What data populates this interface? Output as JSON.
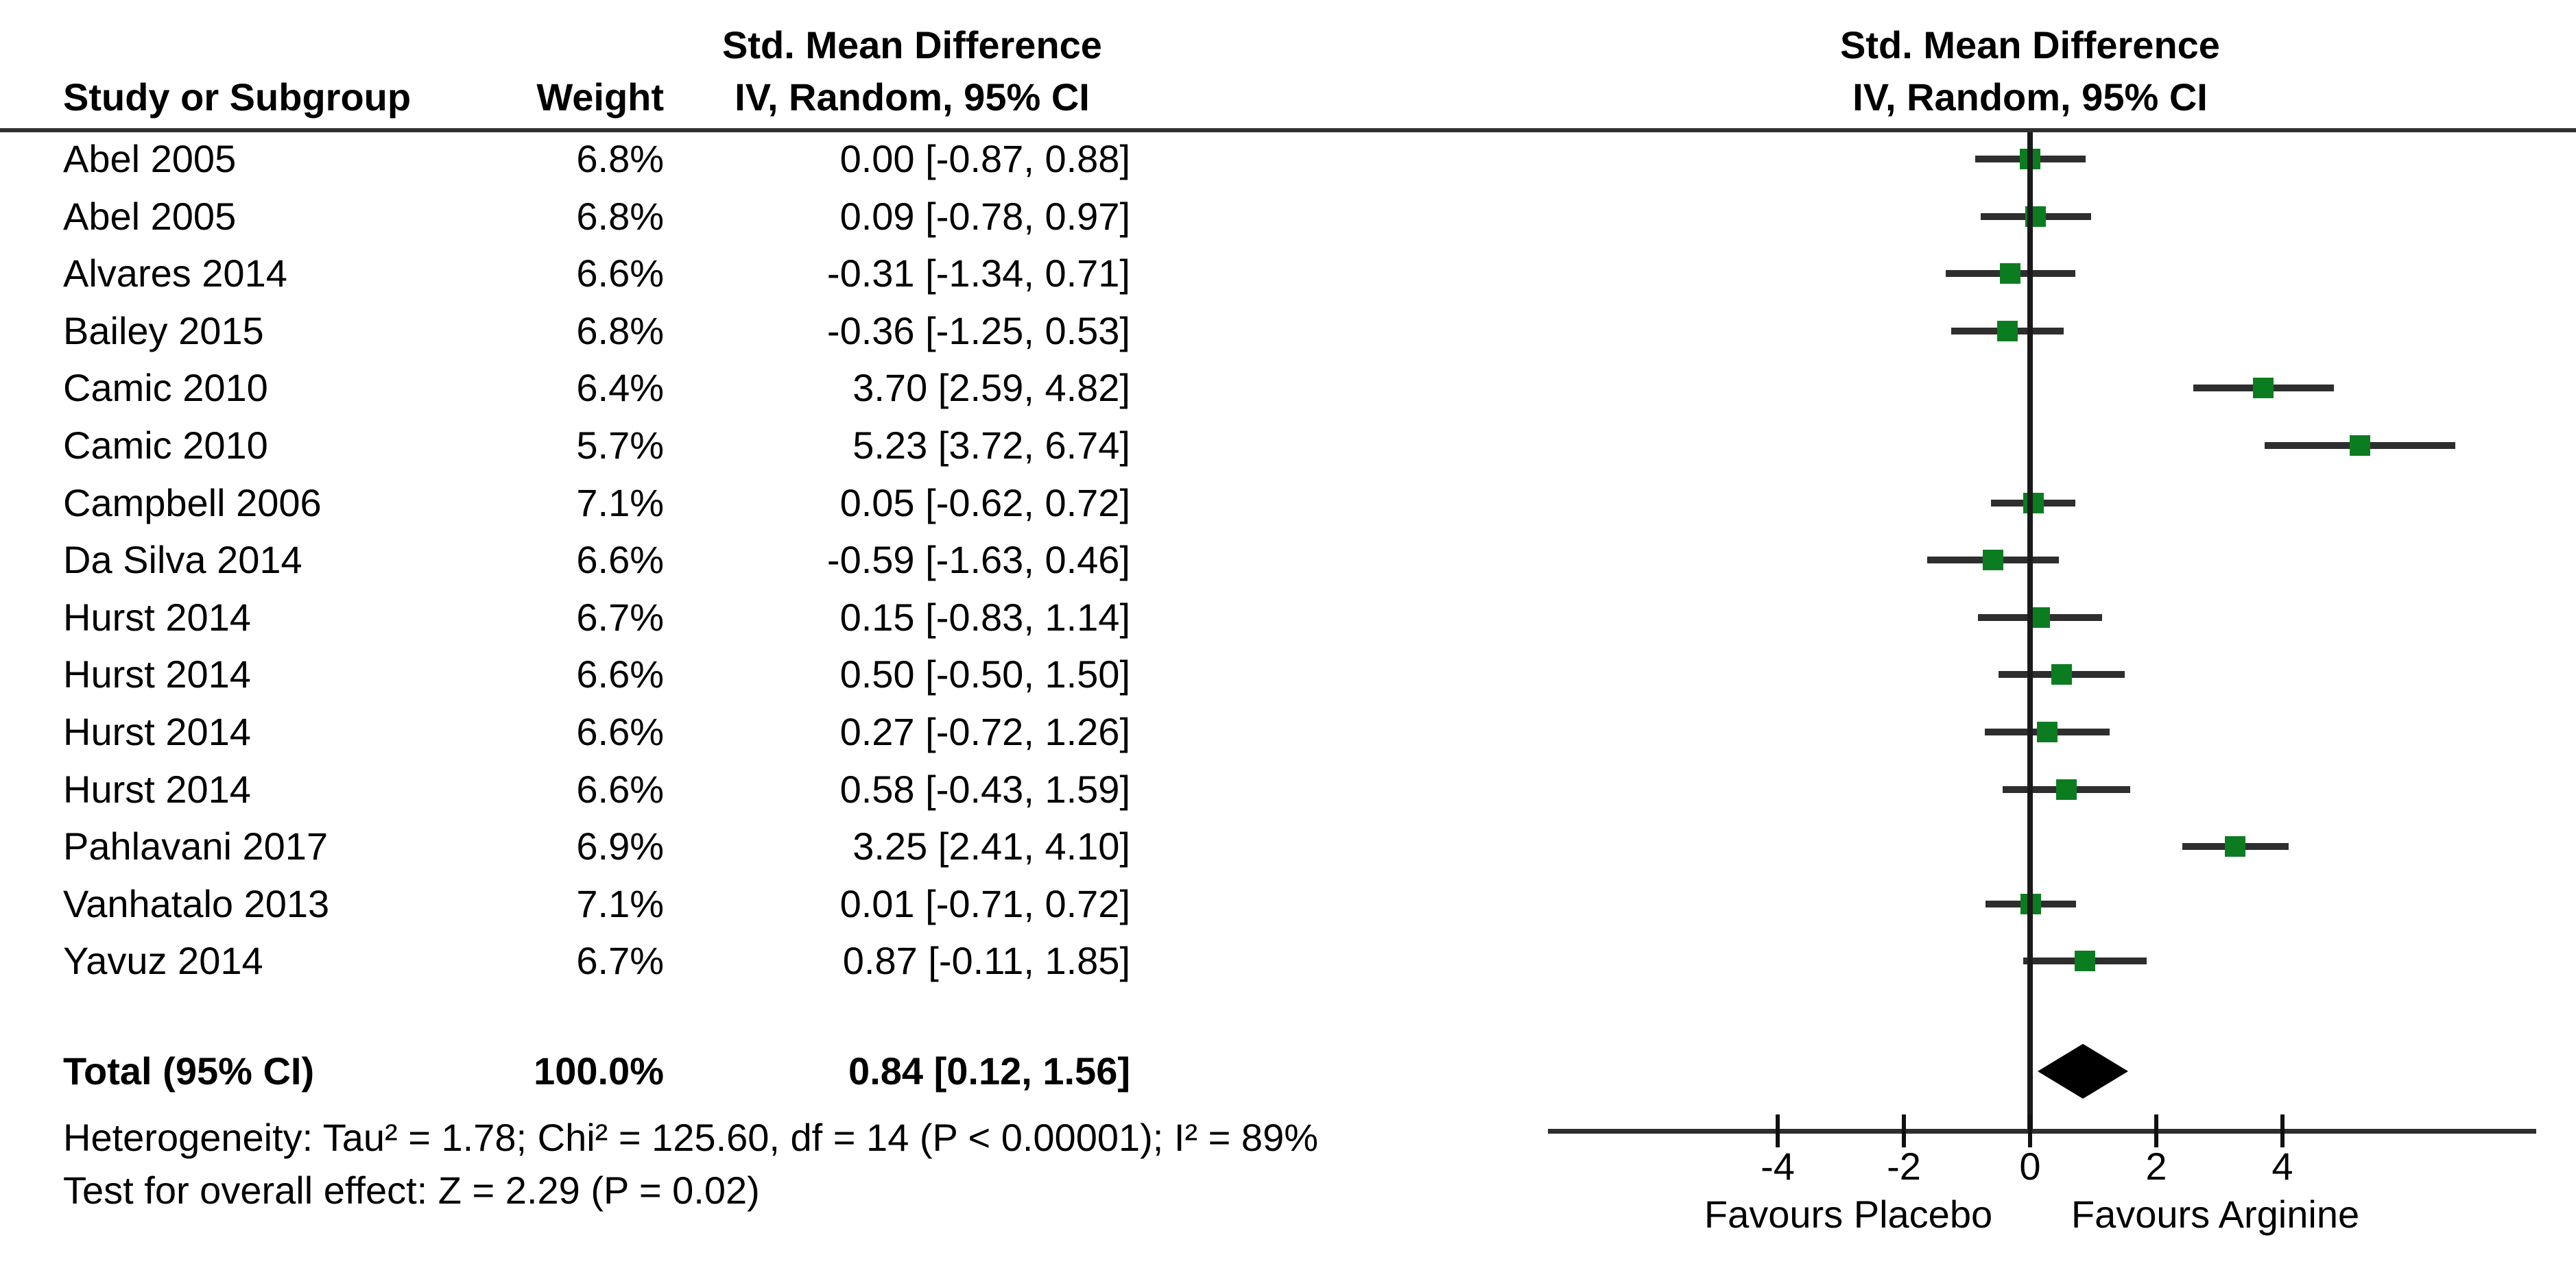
{
  "header": {
    "left_effect_title": "Std. Mean Difference",
    "study_col": "Study or Subgroup",
    "weight_col": "Weight",
    "effect_col": "IV, Random, 95% CI",
    "plot_title": "Std. Mean Difference",
    "plot_subtitle": "IV, Random, 95% CI"
  },
  "footer": {
    "heterogeneity": "Heterogeneity: Tau² = 1.78; Chi² = 125.60, df = 14 (P < 0.00001); I² = 89%",
    "overall_effect": "Test for overall effect: Z = 2.29 (P = 0.02)"
  },
  "colors": {
    "marker_green": "#0b7d20",
    "ci_line": "#2e2e2e",
    "diamond_black": "#000000"
  },
  "chart_data": {
    "type": "scatter",
    "subtype": "forest-plot",
    "effect_measure": "Std. Mean Difference, IV, Random, 95% CI",
    "studies": [
      {
        "name": "Abel 2005",
        "weight": "6.8%",
        "effect": "0.00 [-0.87, 0.88]",
        "estimate": 0.0,
        "ci_low": -0.87,
        "ci_high": 0.88
      },
      {
        "name": "Abel 2005",
        "weight": "6.8%",
        "effect": "0.09 [-0.78, 0.97]",
        "estimate": 0.09,
        "ci_low": -0.78,
        "ci_high": 0.97
      },
      {
        "name": "Alvares 2014",
        "weight": "6.6%",
        "effect": "-0.31 [-1.34, 0.71]",
        "estimate": -0.31,
        "ci_low": -1.34,
        "ci_high": 0.71
      },
      {
        "name": "Bailey 2015",
        "weight": "6.8%",
        "effect": "-0.36 [-1.25, 0.53]",
        "estimate": -0.36,
        "ci_low": -1.25,
        "ci_high": 0.53
      },
      {
        "name": "Camic 2010",
        "weight": "6.4%",
        "effect": "3.70 [2.59, 4.82]",
        "estimate": 3.7,
        "ci_low": 2.59,
        "ci_high": 4.82
      },
      {
        "name": "Camic 2010",
        "weight": "5.7%",
        "effect": "5.23 [3.72, 6.74]",
        "estimate": 5.23,
        "ci_low": 3.72,
        "ci_high": 6.74
      },
      {
        "name": "Campbell 2006",
        "weight": "7.1%",
        "effect": "0.05 [-0.62, 0.72]",
        "estimate": 0.05,
        "ci_low": -0.62,
        "ci_high": 0.72
      },
      {
        "name": "Da Silva 2014",
        "weight": "6.6%",
        "effect": "-0.59 [-1.63, 0.46]",
        "estimate": -0.59,
        "ci_low": -1.63,
        "ci_high": 0.46
      },
      {
        "name": "Hurst 2014",
        "weight": "6.7%",
        "effect": "0.15 [-0.83, 1.14]",
        "estimate": 0.15,
        "ci_low": -0.83,
        "ci_high": 1.14
      },
      {
        "name": "Hurst 2014",
        "weight": "6.6%",
        "effect": "0.50 [-0.50, 1.50]",
        "estimate": 0.5,
        "ci_low": -0.5,
        "ci_high": 1.5
      },
      {
        "name": "Hurst 2014",
        "weight": "6.6%",
        "effect": "0.27 [-0.72, 1.26]",
        "estimate": 0.27,
        "ci_low": -0.72,
        "ci_high": 1.26
      },
      {
        "name": "Hurst 2014",
        "weight": "6.6%",
        "effect": "0.58 [-0.43, 1.59]",
        "estimate": 0.58,
        "ci_low": -0.43,
        "ci_high": 1.59
      },
      {
        "name": "Pahlavani 2017",
        "weight": "6.9%",
        "effect": "3.25 [2.41, 4.10]",
        "estimate": 3.25,
        "ci_low": 2.41,
        "ci_high": 4.1
      },
      {
        "name": "Vanhatalo 2013",
        "weight": "7.1%",
        "effect": "0.01 [-0.71, 0.72]",
        "estimate": 0.01,
        "ci_low": -0.71,
        "ci_high": 0.72
      },
      {
        "name": "Yavuz 2014",
        "weight": "6.7%",
        "effect": "0.87 [-0.11, 1.85]",
        "estimate": 0.87,
        "ci_low": -0.11,
        "ci_high": 1.85
      }
    ],
    "total": {
      "label": "Total (95% CI)",
      "weight": "100.0%",
      "effect": "0.84 [0.12, 1.56]",
      "estimate": 0.84,
      "ci_low": 0.12,
      "ci_high": 1.56
    },
    "x_ticks": [
      -4,
      -2,
      0,
      2,
      4
    ],
    "xlim": [
      -7.6,
      8.0
    ],
    "x_left_label": "Favours Placebo",
    "x_right_label": "Favours Arginine",
    "heterogeneity": "Tau² = 1.78; Chi² = 125.60, df = 14 (P < 0.00001); I² = 89%",
    "test_overall_effect": "Z = 2.29 (P = 0.02)",
    "grid": false,
    "legend": false
  }
}
